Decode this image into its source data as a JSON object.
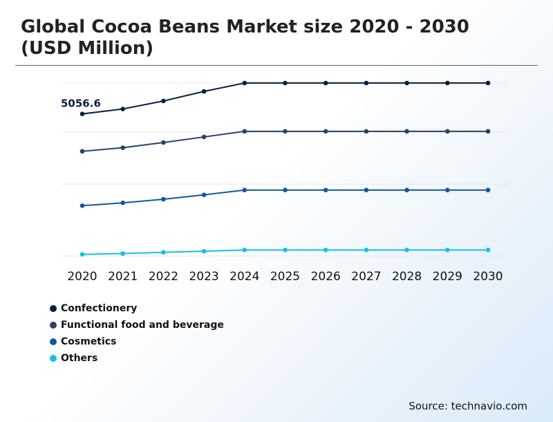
{
  "header": {
    "title": "Global Cocoa Beans Market size 2020 - 2030 (USD Million)"
  },
  "source": "Source: technavio.com",
  "chart_data": {
    "type": "line",
    "x": [
      "2020",
      "2021",
      "2022",
      "2023",
      "2024",
      "2025",
      "2026",
      "2027",
      "2028",
      "2029",
      "2030"
    ],
    "series": [
      {
        "name": "Confectionery",
        "color": "#0b1f44",
        "values": [
          5056.6,
          5180,
          5380,
          5620,
          5830,
          5830,
          5830,
          5830,
          5830,
          5830,
          5830
        ]
      },
      {
        "name": "Functional food and beverage",
        "color": "#2b3f6b",
        "values": [
          4120,
          4210,
          4340,
          4480,
          4620,
          4620,
          4620,
          4620,
          4620,
          4620,
          4620
        ]
      },
      {
        "name": "Cosmetics",
        "color": "#1258a0",
        "values": [
          2760,
          2830,
          2920,
          3030,
          3150,
          3150,
          3150,
          3150,
          3150,
          3150,
          3150
        ]
      },
      {
        "name": "Others",
        "color": "#18c0e0",
        "values": [
          1540,
          1560,
          1590,
          1620,
          1650,
          1650,
          1650,
          1650,
          1650,
          1650,
          1650
        ]
      }
    ],
    "annotations": [
      {
        "series": "Confectionery",
        "x": "2020",
        "label": "5056.6"
      }
    ],
    "ylim": [
      1500,
      5830
    ],
    "grid": true,
    "legend_position": "bottom-left"
  }
}
